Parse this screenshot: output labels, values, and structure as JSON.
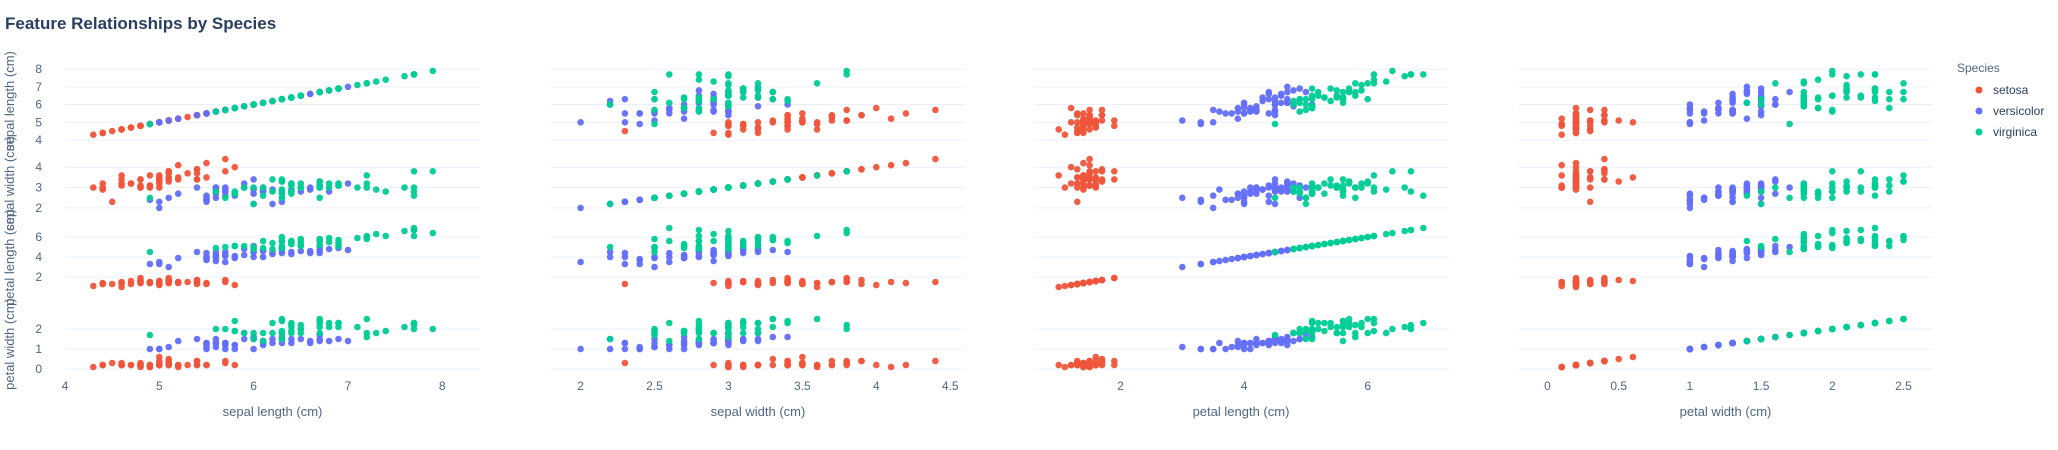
{
  "chart_data": {
    "type": "scatter",
    "title": "Feature Relationships by Species",
    "features": [
      "sepal length (cm)",
      "sepal width (cm)",
      "petal length (cm)",
      "petal width (cm)"
    ],
    "axis_ranges": {
      "sepal length (cm)": [
        4,
        8.4
      ],
      "sepal width (cm)": [
        1.8,
        4.6
      ],
      "petal length (cm)": [
        0.6,
        7.3
      ],
      "petal width (cm)": [
        -0.2,
        2.7
      ]
    },
    "x_ticks": [
      [
        4,
        5,
        6,
        7,
        8
      ],
      [
        2,
        2.5,
        3,
        3.5,
        4,
        4.5
      ],
      [
        2,
        4,
        6
      ],
      [
        0,
        0.5,
        1,
        1.5,
        2,
        2.5
      ]
    ],
    "y_ticks": [
      [
        4,
        5,
        6,
        7,
        8
      ],
      [
        2,
        3,
        4
      ],
      [
        2,
        4,
        6
      ],
      [
        0,
        1,
        2
      ]
    ],
    "legend": {
      "title": "Species",
      "placement": "top-right"
    },
    "series": [
      {
        "name": "setosa",
        "color": "#EF553B",
        "sepal length (cm)": [
          5.1,
          4.9,
          4.7,
          4.6,
          5.0,
          5.4,
          4.6,
          5.0,
          4.4,
          4.9,
          5.4,
          4.8,
          4.8,
          4.3,
          5.8,
          5.7,
          5.4,
          5.1,
          5.7,
          5.1,
          5.4,
          5.1,
          4.6,
          5.1,
          4.8,
          5.0,
          5.0,
          5.2,
          5.2,
          4.7,
          4.8,
          5.4,
          5.2,
          5.5,
          4.9,
          5.0,
          5.5,
          4.9,
          4.4,
          5.1,
          5.0,
          4.5,
          4.4,
          5.0,
          5.1,
          4.8,
          5.1,
          4.6,
          5.3,
          5.0
        ],
        "sepal width (cm)": [
          3.5,
          3.0,
          3.2,
          3.1,
          3.6,
          3.9,
          3.4,
          3.4,
          2.9,
          3.1,
          3.7,
          3.4,
          3.0,
          3.0,
          4.0,
          4.4,
          3.9,
          3.5,
          3.8,
          3.8,
          3.4,
          3.7,
          3.6,
          3.3,
          3.4,
          3.0,
          3.4,
          3.5,
          3.4,
          3.2,
          3.1,
          3.4,
          4.1,
          4.2,
          3.1,
          3.2,
          3.5,
          3.6,
          3.0,
          3.4,
          3.5,
          2.3,
          3.2,
          3.5,
          3.8,
          3.0,
          3.8,
          3.2,
          3.7,
          3.3
        ],
        "petal length (cm)": [
          1.4,
          1.4,
          1.3,
          1.5,
          1.4,
          1.7,
          1.4,
          1.5,
          1.4,
          1.5,
          1.5,
          1.6,
          1.4,
          1.1,
          1.2,
          1.5,
          1.3,
          1.4,
          1.7,
          1.5,
          1.7,
          1.5,
          1.0,
          1.7,
          1.9,
          1.6,
          1.6,
          1.5,
          1.4,
          1.6,
          1.6,
          1.5,
          1.5,
          1.4,
          1.5,
          1.2,
          1.3,
          1.4,
          1.3,
          1.5,
          1.3,
          1.3,
          1.3,
          1.6,
          1.9,
          1.4,
          1.6,
          1.4,
          1.5,
          1.4
        ],
        "petal width (cm)": [
          0.2,
          0.2,
          0.2,
          0.2,
          0.2,
          0.4,
          0.3,
          0.2,
          0.2,
          0.1,
          0.2,
          0.2,
          0.1,
          0.1,
          0.2,
          0.4,
          0.4,
          0.3,
          0.3,
          0.3,
          0.2,
          0.4,
          0.2,
          0.5,
          0.2,
          0.2,
          0.4,
          0.2,
          0.2,
          0.2,
          0.2,
          0.4,
          0.1,
          0.2,
          0.2,
          0.2,
          0.2,
          0.1,
          0.2,
          0.2,
          0.3,
          0.3,
          0.2,
          0.6,
          0.4,
          0.3,
          0.2,
          0.2,
          0.2,
          0.2
        ]
      },
      {
        "name": "versicolor",
        "color": "#636EFA",
        "sepal length (cm)": [
          7.0,
          6.4,
          6.9,
          5.5,
          6.5,
          5.7,
          6.3,
          4.9,
          6.6,
          5.2,
          5.0,
          5.9,
          6.0,
          6.1,
          5.6,
          6.7,
          5.6,
          5.8,
          6.2,
          5.6,
          5.9,
          6.1,
          6.3,
          6.1,
          6.4,
          6.6,
          6.8,
          6.7,
          6.0,
          5.7,
          5.5,
          5.5,
          5.8,
          6.0,
          5.4,
          6.0,
          6.7,
          6.3,
          5.6,
          5.5,
          5.5,
          6.1,
          5.8,
          5.0,
          5.6,
          5.7,
          5.7,
          6.2,
          5.1,
          5.7
        ],
        "sepal width (cm)": [
          3.2,
          3.2,
          3.1,
          2.3,
          2.8,
          2.8,
          3.3,
          2.4,
          2.9,
          2.7,
          2.0,
          3.0,
          2.2,
          2.9,
          2.9,
          3.1,
          3.0,
          2.7,
          2.2,
          2.5,
          3.2,
          2.8,
          2.5,
          2.8,
          2.9,
          3.0,
          2.8,
          3.0,
          2.9,
          2.6,
          2.4,
          2.4,
          2.7,
          2.7,
          3.0,
          3.4,
          3.1,
          2.3,
          3.0,
          2.5,
          2.6,
          3.0,
          2.6,
          2.3,
          2.7,
          3.0,
          2.9,
          2.9,
          2.5,
          2.8
        ],
        "petal length (cm)": [
          4.7,
          4.5,
          4.9,
          4.0,
          4.6,
          4.5,
          4.7,
          3.3,
          4.6,
          3.9,
          3.5,
          4.2,
          4.0,
          4.7,
          3.6,
          4.4,
          4.5,
          4.1,
          4.5,
          3.9,
          4.8,
          4.0,
          4.9,
          4.7,
          4.3,
          4.4,
          4.8,
          5.0,
          4.5,
          3.5,
          3.8,
          3.7,
          3.9,
          5.1,
          4.5,
          4.5,
          4.7,
          4.4,
          4.1,
          4.0,
          4.4,
          4.6,
          4.0,
          3.3,
          4.2,
          4.2,
          4.2,
          4.3,
          3.0,
          4.1
        ],
        "petal width (cm)": [
          1.4,
          1.5,
          1.5,
          1.3,
          1.5,
          1.3,
          1.6,
          1.0,
          1.3,
          1.4,
          1.0,
          1.5,
          1.0,
          1.4,
          1.3,
          1.4,
          1.5,
          1.0,
          1.5,
          1.1,
          1.8,
          1.3,
          1.5,
          1.2,
          1.3,
          1.4,
          1.4,
          1.7,
          1.5,
          1.0,
          1.1,
          1.0,
          1.2,
          1.6,
          1.5,
          1.6,
          1.5,
          1.3,
          1.3,
          1.3,
          1.2,
          1.4,
          1.2,
          1.0,
          1.3,
          1.2,
          1.3,
          1.3,
          1.1,
          1.3
        ]
      },
      {
        "name": "virginica",
        "color": "#00CC96",
        "sepal length (cm)": [
          6.3,
          5.8,
          7.1,
          6.3,
          6.5,
          7.6,
          4.9,
          7.3,
          6.7,
          7.2,
          6.5,
          6.4,
          6.8,
          5.7,
          5.8,
          6.4,
          6.5,
          7.7,
          7.7,
          6.0,
          6.9,
          5.6,
          7.7,
          6.3,
          6.7,
          7.2,
          6.2,
          6.1,
          6.4,
          7.2,
          7.4,
          7.9,
          6.4,
          6.3,
          6.1,
          7.7,
          6.3,
          6.4,
          6.0,
          6.9,
          6.7,
          6.9,
          5.8,
          6.8,
          6.7,
          6.7,
          6.3,
          6.5,
          6.2,
          5.9
        ],
        "sepal width (cm)": [
          3.3,
          2.7,
          3.0,
          2.9,
          3.0,
          3.0,
          2.5,
          2.9,
          2.5,
          3.6,
          3.2,
          2.7,
          3.0,
          2.5,
          2.8,
          3.2,
          3.0,
          3.8,
          2.6,
          2.2,
          3.2,
          2.8,
          2.8,
          2.7,
          3.3,
          3.2,
          2.8,
          3.0,
          2.8,
          3.0,
          2.8,
          3.8,
          2.8,
          2.8,
          2.6,
          3.0,
          3.4,
          3.1,
          3.0,
          3.1,
          3.1,
          3.1,
          2.7,
          3.2,
          3.3,
          3.0,
          2.5,
          3.0,
          3.4,
          3.0
        ],
        "petal length (cm)": [
          6.0,
          5.1,
          5.9,
          5.6,
          5.8,
          6.6,
          4.5,
          6.3,
          5.8,
          6.1,
          5.1,
          5.3,
          5.5,
          5.0,
          5.1,
          5.3,
          5.5,
          6.7,
          6.9,
          5.0,
          5.7,
          4.9,
          6.7,
          4.9,
          5.7,
          6.0,
          4.8,
          4.9,
          5.6,
          5.8,
          6.1,
          6.4,
          5.6,
          5.1,
          5.6,
          6.1,
          5.6,
          5.5,
          4.8,
          5.4,
          5.6,
          5.1,
          5.1,
          5.9,
          5.7,
          5.2,
          5.0,
          5.2,
          5.4,
          5.1
        ],
        "petal width (cm)": [
          2.5,
          1.9,
          2.1,
          1.8,
          2.2,
          2.1,
          1.7,
          1.8,
          1.8,
          2.5,
          2.0,
          1.9,
          2.1,
          2.0,
          2.4,
          2.3,
          1.8,
          2.2,
          2.3,
          1.5,
          2.3,
          2.0,
          2.0,
          1.8,
          2.1,
          1.8,
          1.8,
          1.8,
          2.1,
          1.6,
          1.9,
          2.0,
          2.2,
          1.5,
          1.4,
          2.3,
          2.4,
          1.8,
          1.8,
          2.1,
          2.4,
          2.3,
          1.9,
          2.3,
          2.5,
          2.3,
          1.9,
          2.0,
          2.3,
          1.8
        ]
      }
    ]
  }
}
